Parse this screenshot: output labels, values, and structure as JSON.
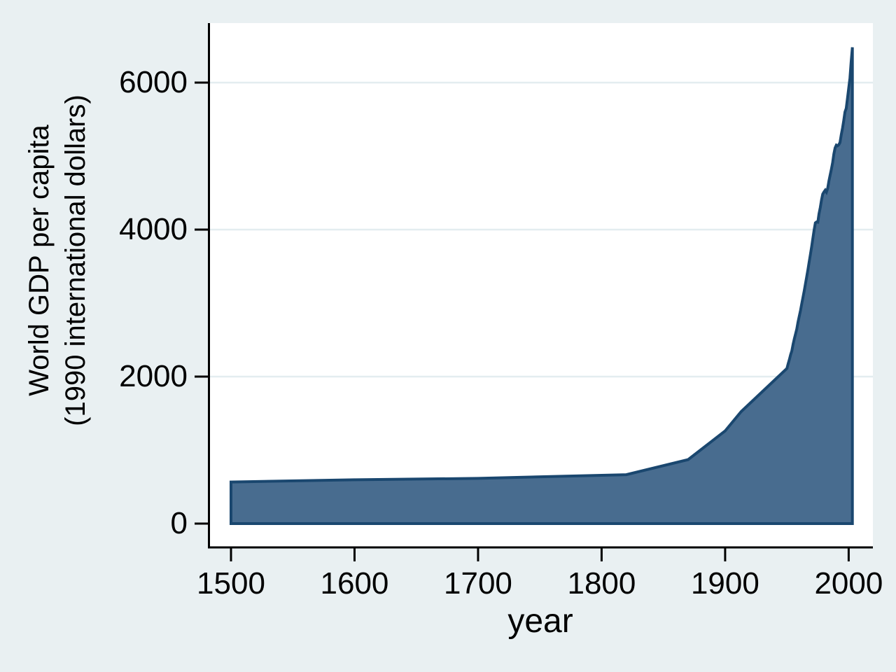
{
  "chart_data": {
    "type": "area",
    "title": "",
    "xlabel": "year",
    "ylabel_lines": [
      "World GDP per capita",
      "(1990 international dollars)"
    ],
    "x_ticks": [
      "1500",
      "1600",
      "1700",
      "1800",
      "1900",
      "2000"
    ],
    "y_ticks": [
      "0",
      "2000",
      "4000",
      "6000"
    ],
    "xlim": [
      1500,
      2003
    ],
    "ylim": [
      0,
      6480
    ],
    "grid": true,
    "legend": false,
    "series": [
      {
        "name": "World GDP per capita",
        "points": [
          [
            1500,
            566
          ],
          [
            1600,
            596
          ],
          [
            1700,
            615
          ],
          [
            1820,
            666
          ],
          [
            1870,
            870
          ],
          [
            1900,
            1261
          ],
          [
            1913,
            1525
          ],
          [
            1950,
            2111
          ],
          [
            1951,
            2173
          ],
          [
            1952,
            2232
          ],
          [
            1953,
            2300
          ],
          [
            1954,
            2350
          ],
          [
            1955,
            2440
          ],
          [
            1956,
            2512
          ],
          [
            1957,
            2580
          ],
          [
            1958,
            2650
          ],
          [
            1959,
            2740
          ],
          [
            1960,
            2821
          ],
          [
            1961,
            2900
          ],
          [
            1962,
            2989
          ],
          [
            1963,
            3077
          ],
          [
            1964,
            3167
          ],
          [
            1965,
            3260
          ],
          [
            1966,
            3356
          ],
          [
            1967,
            3455
          ],
          [
            1968,
            3556
          ],
          [
            1969,
            3660
          ],
          [
            1970,
            3767
          ],
          [
            1971,
            3878
          ],
          [
            1972,
            3992
          ],
          [
            1973,
            4091
          ],
          [
            1974,
            4104
          ],
          [
            1975,
            4101
          ],
          [
            1976,
            4214
          ],
          [
            1977,
            4299
          ],
          [
            1978,
            4404
          ],
          [
            1979,
            4483
          ],
          [
            1980,
            4512
          ],
          [
            1981,
            4536
          ],
          [
            1982,
            4510
          ],
          [
            1983,
            4562
          ],
          [
            1984,
            4663
          ],
          [
            1985,
            4741
          ],
          [
            1986,
            4822
          ],
          [
            1987,
            4912
          ],
          [
            1988,
            5028
          ],
          [
            1989,
            5111
          ],
          [
            1990,
            5150
          ],
          [
            1991,
            5140
          ],
          [
            1992,
            5155
          ],
          [
            1993,
            5185
          ],
          [
            1994,
            5290
          ],
          [
            1995,
            5380
          ],
          [
            1996,
            5480
          ],
          [
            1997,
            5600
          ],
          [
            1998,
            5650
          ],
          [
            1999,
            5780
          ],
          [
            2000,
            5920
          ],
          [
            2001,
            6060
          ],
          [
            2002,
            6280
          ],
          [
            2003,
            6480
          ]
        ]
      }
    ]
  },
  "colors": {
    "background": "#e9f0f2",
    "plot_background": "#ffffff",
    "gridline": "#e3edf0",
    "area_fill": "#486c8f",
    "area_outline": "#1a476f",
    "axis": "#000000",
    "text": "#000000"
  }
}
